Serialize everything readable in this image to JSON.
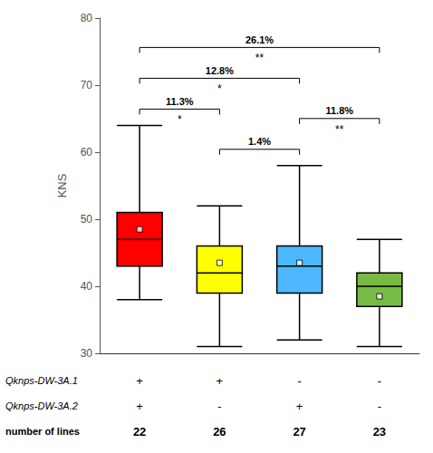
{
  "chart_data": {
    "type": "boxplot",
    "ylabel": "KNS",
    "ylim": [
      30,
      80
    ],
    "yticks": [
      30,
      40,
      50,
      60,
      70,
      80
    ],
    "grid": false,
    "tick_labels": "y",
    "marker": "square",
    "boxes": [
      {
        "whisker_low": 38,
        "q1": 43,
        "median": 47,
        "q3": 51,
        "whisker_high": 64,
        "mean": 48.5
      },
      {
        "whisker_low": 31,
        "q1": 39,
        "median": 42,
        "q3": 46,
        "whisker_high": 52,
        "mean": 43.5
      },
      {
        "whisker_low": 32,
        "q1": 39,
        "median": 43,
        "q3": 46,
        "whisker_high": 58,
        "mean": 43.5
      },
      {
        "whisker_low": 31,
        "q1": 37,
        "median": 40,
        "q3": 42,
        "whisker_high": 47,
        "mean": 38.5
      }
    ],
    "colors": [
      "#FF0000",
      "#FFFF00",
      "#4DB8FF",
      "#77BB44"
    ],
    "rows": [
      {
        "label": "Qknps-DW-3A.1",
        "values": [
          "+",
          "+",
          "-",
          "-"
        ]
      },
      {
        "label": "Qknps-DW-3A.2",
        "values": [
          "+",
          "-",
          "+",
          "-"
        ]
      },
      {
        "label": "number of lines",
        "values": [
          "22",
          "26",
          "27",
          "23"
        ]
      }
    ],
    "brackets": [
      {
        "between": [
          1,
          2
        ],
        "label": "11.3%",
        "sig": "*"
      },
      {
        "between": [
          2,
          3
        ],
        "label": "1.4%",
        "sig": null
      },
      {
        "between": [
          3,
          4
        ],
        "label": "11.8%",
        "sig": "**"
      },
      {
        "between": [
          1,
          3
        ],
        "label": "12.8%",
        "sig": "*"
      },
      {
        "between": [
          1,
          4
        ],
        "label": "26.1%",
        "sig": "**"
      }
    ]
  }
}
